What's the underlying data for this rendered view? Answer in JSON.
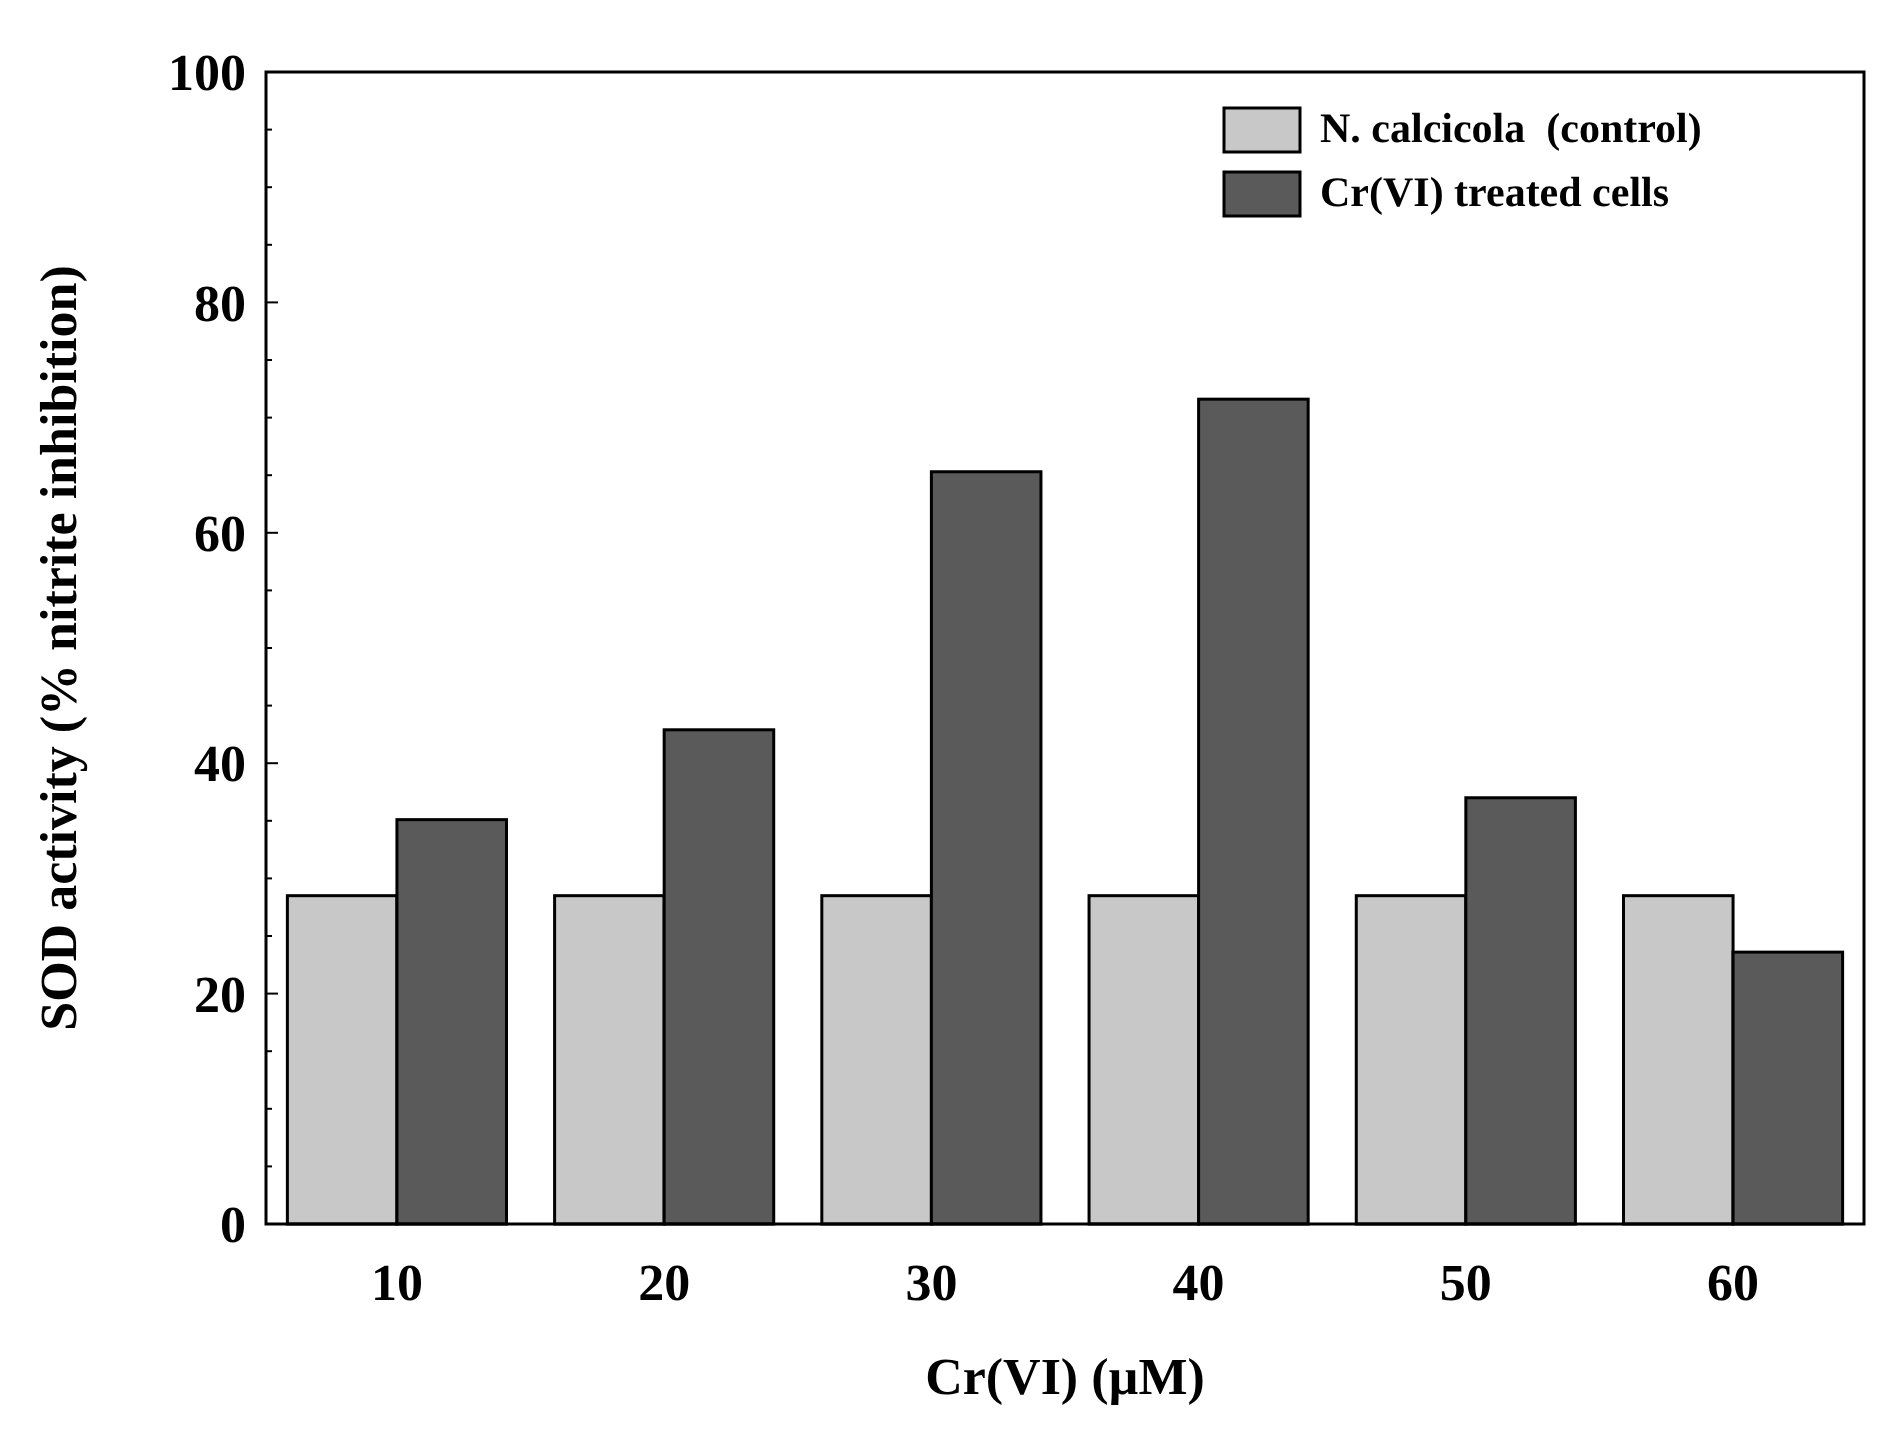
{
  "chart_data": {
    "type": "bar",
    "xlabel": "Cr(VI) (µM)",
    "ylabel": "SOD activity (% nitrite inhibition)",
    "categories": [
      "10",
      "20",
      "30",
      "40",
      "50",
      "60"
    ],
    "series": [
      {
        "name": "N. calcicola  (control)",
        "color": "#c8c8c8",
        "values": [
          28.5,
          28.5,
          28.5,
          28.5,
          28.5,
          28.5
        ]
      },
      {
        "name": "Cr(VI) treated cells",
        "color": "#5a5a5a",
        "values": [
          35.1,
          42.9,
          65.3,
          71.6,
          37.0,
          23.6
        ]
      }
    ],
    "ylim": [
      0,
      100
    ],
    "yticks": [
      0,
      {
        "value": 5,
        "label": null
      },
      {
        "value": 10,
        "label": null
      },
      {
        "value": 15,
        "label": null
      },
      20,
      {
        "value": 25,
        "label": null
      },
      {
        "value": 30,
        "label": null
      },
      {
        "value": 35,
        "label": null
      },
      40,
      {
        "value": 45,
        "label": null
      },
      {
        "value": 50,
        "label": null
      },
      {
        "value": 55,
        "label": null
      },
      60,
      {
        "value": 65,
        "label": null
      },
      {
        "value": 70,
        "label": null
      },
      {
        "value": 75,
        "label": null
      },
      80,
      {
        "value": 85,
        "label": null
      },
      {
        "value": 90,
        "label": null
      },
      {
        "value": 95,
        "label": null
      },
      100
    ],
    "grid": false,
    "legend": "top right"
  }
}
